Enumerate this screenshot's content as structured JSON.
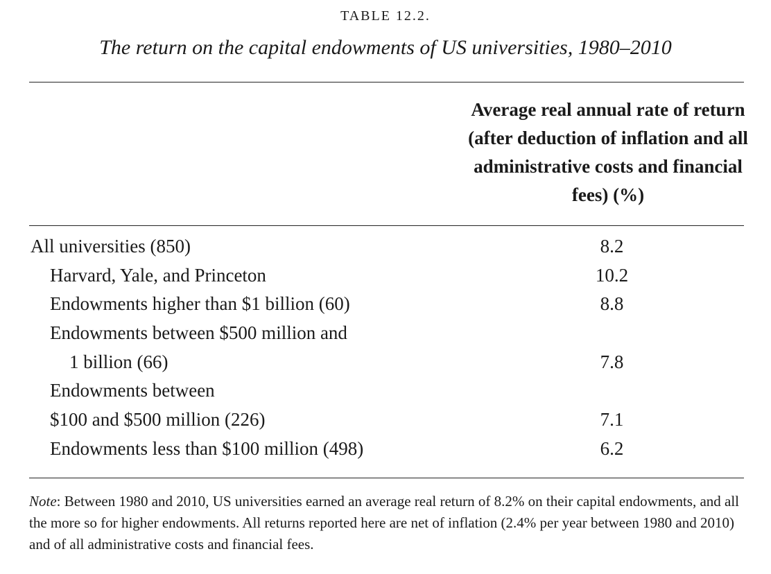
{
  "table": {
    "label": "TABLE 12.2.",
    "title": "The return on the capital endowments of US universities, 1980–2010",
    "column_header": "Average real annual rate of return (after deduction of inflation and all administrative costs and financial fees) (%)",
    "rows": [
      {
        "label": "All universities (850)",
        "value": "8.2"
      },
      {
        "label": "Harvard, Yale, and Princeton",
        "value": "10.2"
      },
      {
        "label": "Endowments higher than $1 billion (60)",
        "value": "8.8"
      },
      {
        "label": "Endowments between $500 million and",
        "value": ""
      },
      {
        "label": "1 billion (66)",
        "value": "7.8"
      },
      {
        "label": "Endowments between",
        "value": ""
      },
      {
        "label": "$100 and $500 million (226)",
        "value": "7.1"
      },
      {
        "label": "Endowments less than $100 million (498)",
        "value": "6.2"
      }
    ]
  },
  "note": {
    "label": "Note",
    "text": ": Between 1980 and 2010, US universities earned an average real return of 8.2% on their capital endowments, and all the more so for higher endowments. All returns reported here are net of inflation (2.4% per year between 1980 and 2010) and of all administrative costs and financial fees."
  }
}
